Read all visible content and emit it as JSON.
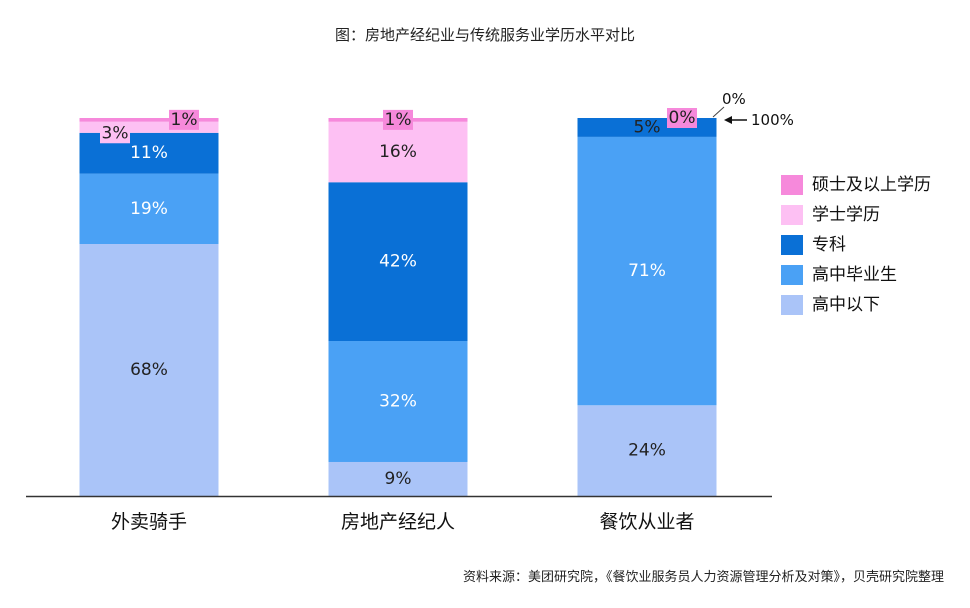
{
  "chart_data": {
    "type": "bar",
    "stacked": true,
    "title": "图：房地产经纪业与传统服务业学历水平对比",
    "categories": [
      "外卖骑手",
      "房地产经纪人",
      "餐饮从业者"
    ],
    "series": [
      {
        "name": "高中以下",
        "color": "#aac4f8",
        "label_color": "#222222",
        "values": [
          68,
          9,
          24
        ],
        "labels": [
          "68%",
          "9%",
          "24%"
        ]
      },
      {
        "name": "高中毕业生",
        "color": "#4aa1f5",
        "label_color": "#ffffff",
        "values": [
          19,
          32,
          71
        ],
        "labels": [
          "19%",
          "32%",
          "71%"
        ]
      },
      {
        "name": "专科",
        "color": "#0a70d6",
        "label_color": "#ffffff",
        "values": [
          11,
          42,
          5
        ],
        "labels": [
          "11%",
          "42%",
          "5%"
        ]
      },
      {
        "name": "学士学历",
        "color": "#fdc0f3",
        "label_color": "#222222",
        "values": [
          3,
          16,
          0
        ],
        "labels": [
          "3%",
          "16%",
          "0%"
        ]
      },
      {
        "name": "硕士及以上学历",
        "color": "#f689db",
        "label_color": "#222222",
        "values": [
          1,
          1,
          0
        ],
        "labels": [
          "1%",
          "1%",
          "0%"
        ]
      }
    ],
    "ylim": [
      0,
      100
    ],
    "xlabel": "",
    "ylabel": "",
    "grid": false,
    "legend_position": "right",
    "annotations": [
      {
        "text": "0%",
        "target": "餐饮从业者"
      },
      {
        "text": "100%",
        "target": "餐饮从业者"
      }
    ],
    "source": "资料来源：美团研究院，《餐饮业服务员人力资源管理分析及对策》，贝壳研究院整理"
  }
}
